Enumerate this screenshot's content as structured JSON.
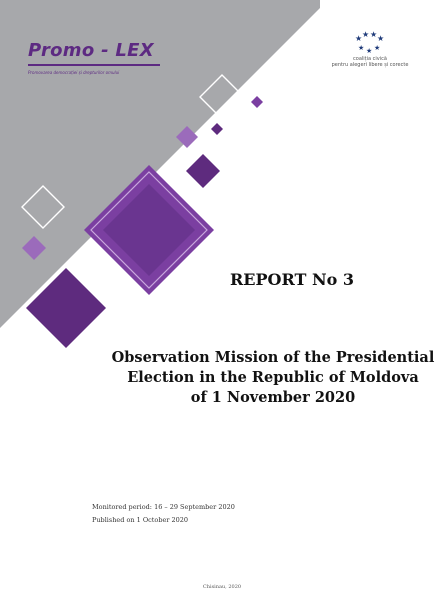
{
  "brand": {
    "logo_text": "Promo - LEX",
    "tagline": "Promovarea democrației și drepturilor omului",
    "purple": "#5d2a82"
  },
  "coalition": {
    "line1": "coaliția civică",
    "line2": "pentru alegeri libere și corecte",
    "icon": "circle-of-stars-icon",
    "star_color": "#1f3b7a"
  },
  "cover": {
    "report_number": "REPORT No 3",
    "title_lines": [
      "Observation Mission of the Presidential",
      "Election in the Republic of Moldova",
      "of 1 November 2020"
    ],
    "monitored_period": "Monitored period: 16 – 29 September 2020",
    "published": "Published on 1 October 2020",
    "place_date": "Chisinau, 2020"
  },
  "colors": {
    "gray_band": "#a7a8ab",
    "purple_dark": "#5e2b7e",
    "purple_mid": "#7b3fa1",
    "purple_light": "#9b6bbb"
  }
}
